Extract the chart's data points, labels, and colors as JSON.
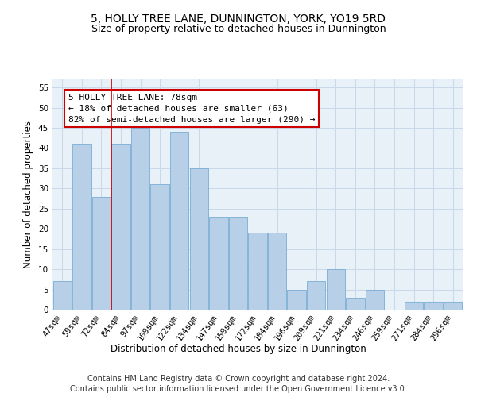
{
  "title": "5, HOLLY TREE LANE, DUNNINGTON, YORK, YO19 5RD",
  "subtitle": "Size of property relative to detached houses in Dunnington",
  "xlabel": "Distribution of detached houses by size in Dunnington",
  "ylabel": "Number of detached properties",
  "categories": [
    "47sqm",
    "59sqm",
    "72sqm",
    "84sqm",
    "97sqm",
    "109sqm",
    "122sqm",
    "134sqm",
    "147sqm",
    "159sqm",
    "172sqm",
    "184sqm",
    "196sqm",
    "209sqm",
    "221sqm",
    "234sqm",
    "246sqm",
    "259sqm",
    "271sqm",
    "284sqm",
    "296sqm"
  ],
  "values": [
    7,
    41,
    28,
    41,
    45,
    31,
    44,
    35,
    23,
    23,
    19,
    19,
    5,
    7,
    10,
    3,
    5,
    0,
    2,
    2,
    2
  ],
  "bar_color": "#b8cfe8",
  "bar_edge_color": "#7aadd4",
  "annotation_line0": "5 HOLLY TREE LANE: 78sqm",
  "annotation_line1": "← 18% of detached houses are smaller (63)",
  "annotation_line2": "82% of semi-detached houses are larger (290) →",
  "annotation_box_color": "#ffffff",
  "annotation_box_edge": "#cc0000",
  "vline_color": "#cc0000",
  "ylim": [
    0,
    57
  ],
  "yticks": [
    0,
    5,
    10,
    15,
    20,
    25,
    30,
    35,
    40,
    45,
    50,
    55
  ],
  "grid_color": "#c8d8e8",
  "background_color": "#e8f0f8",
  "footer1": "Contains HM Land Registry data © Crown copyright and database right 2024.",
  "footer2": "Contains public sector information licensed under the Open Government Licence v3.0.",
  "title_fontsize": 10,
  "subtitle_fontsize": 9,
  "axis_label_fontsize": 8.5,
  "tick_fontsize": 7.5,
  "annotation_fontsize": 8,
  "footer_fontsize": 7
}
